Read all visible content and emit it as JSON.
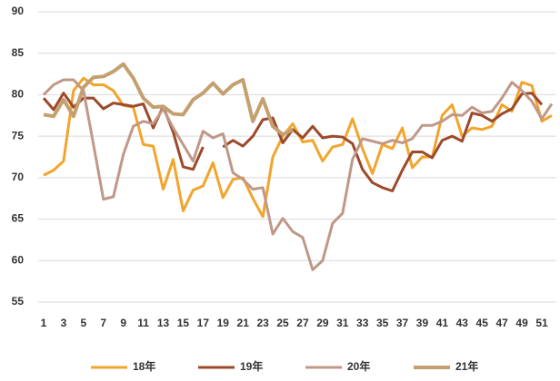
{
  "chart_data": {
    "type": "line",
    "categories": [
      "1",
      null,
      "3",
      null,
      "5",
      null,
      "7",
      null,
      "9",
      null,
      "11",
      null,
      "13",
      null,
      "15",
      null,
      "17",
      null,
      "19",
      null,
      "21",
      null,
      "23",
      null,
      "25",
      null,
      "27",
      null,
      "29",
      null,
      "31",
      null,
      "33",
      null,
      "35",
      null,
      "37",
      null,
      "39",
      null,
      "41",
      null,
      "43",
      null,
      "45",
      null,
      "47",
      null,
      "49",
      null,
      "51",
      null
    ],
    "ylim": [
      55,
      90
    ],
    "yticks": [
      55,
      60,
      65,
      70,
      75,
      80,
      85,
      90
    ],
    "grid": true,
    "legend": "bottom",
    "series": [
      {
        "name": "18年",
        "color": "#f2a52c",
        "values": [
          70.3,
          70.9,
          72,
          80.5,
          82,
          81.2,
          81.2,
          80.5,
          78.7,
          78.5,
          74,
          73.8,
          68.6,
          72.2,
          66,
          68.5,
          69,
          71.8,
          67.6,
          69.8,
          70,
          67.5,
          65.3,
          72.5,
          75,
          76.5,
          74.3,
          74.5,
          72,
          73.7,
          74,
          77.1,
          73.5,
          70.5,
          74,
          73.5,
          76,
          71.2,
          72.5,
          72.5,
          77.5,
          78.8,
          75,
          76,
          75.8,
          76.2,
          78.8,
          78,
          81.5,
          81.1,
          76.8,
          77.5
        ]
      },
      {
        "name": "19年",
        "color": "#9c4a2a",
        "values": [
          79.6,
          78.2,
          80.2,
          78.5,
          79.6,
          79.6,
          78.3,
          79,
          78.8,
          78.6,
          78.9,
          76,
          78.6,
          75.5,
          71.3,
          71,
          73.7,
          null,
          73.7,
          74.5,
          73.8,
          75,
          77,
          77.2,
          74.2,
          75.8,
          74.8,
          76.2,
          74.8,
          75,
          74.9,
          74.1,
          71,
          69.4,
          68.8,
          68.4,
          70.9,
          73.1,
          73.1,
          72.4,
          74.5,
          75,
          74.4,
          77.8,
          77.5,
          76.8,
          77.7,
          78.3,
          80.1,
          80.2,
          78.8,
          null
        ]
      },
      {
        "name": "20年",
        "color": "#c09888",
        "values": [
          80,
          81.2,
          81.8,
          81.8,
          80.5,
          74,
          67.4,
          67.7,
          72.8,
          76.2,
          76.8,
          76.5,
          78.3,
          76,
          74,
          72,
          75.6,
          74.8,
          75.3,
          70.6,
          69.8,
          68.6,
          68.8,
          63.2,
          65.1,
          63.5,
          62.8,
          58.9,
          60,
          64.5,
          65.7,
          72.2,
          74.7,
          74.4,
          74.1,
          74.5,
          74.2,
          74.7,
          76.3,
          76.3,
          76.8,
          77.6,
          77.5,
          78.5,
          77.8,
          78,
          79.6,
          81.5,
          80.5,
          79.2,
          77.1,
          78.9
        ]
      },
      {
        "name": "21年",
        "color": "#c4a070",
        "values": [
          77.6,
          77.4,
          79.4,
          77.4,
          80.9,
          82.1,
          82.2,
          82.8,
          83.7,
          82,
          79.6,
          78.5,
          78.6,
          77.7,
          77.6,
          79.4,
          80.2,
          81.4,
          80.1,
          81.2,
          81.8,
          76.8,
          79.5,
          76.2,
          75.2,
          75.8,
          null,
          null,
          null,
          null,
          null,
          null,
          null,
          null,
          null,
          null,
          null,
          null,
          null,
          null,
          null,
          null,
          null,
          null,
          null,
          null,
          null,
          null,
          null,
          null,
          null,
          null
        ]
      }
    ]
  }
}
